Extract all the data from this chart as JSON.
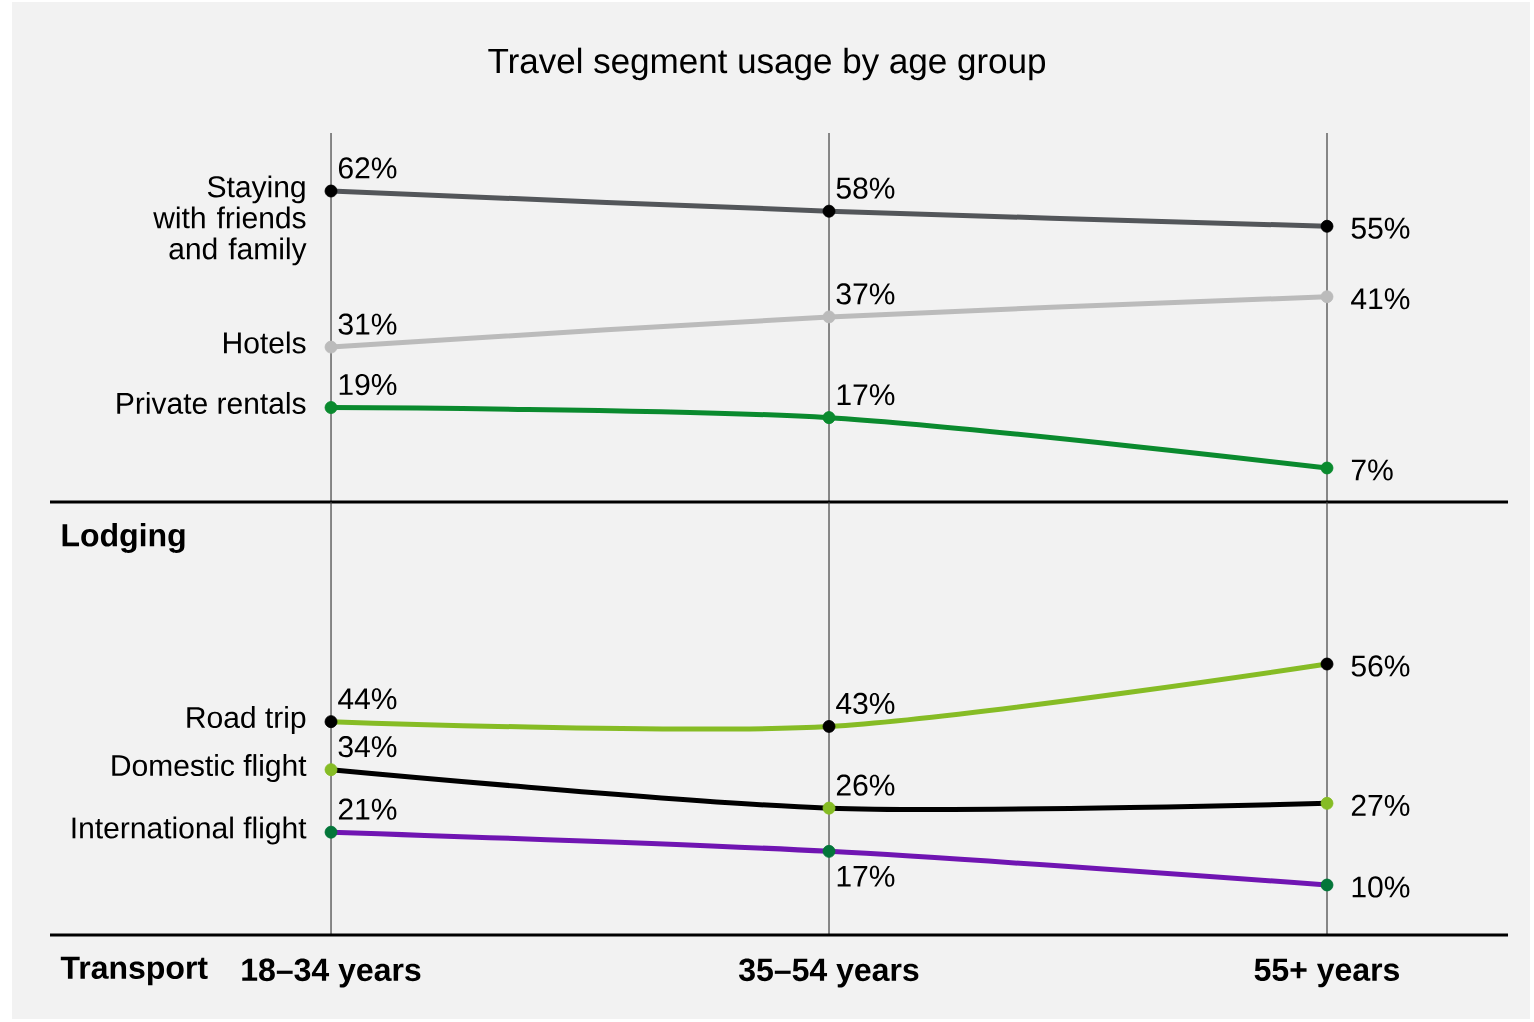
{
  "chart_data": [
    {
      "type": "line",
      "title": "Travel segment usage by age group",
      "xlabel": "Lodging",
      "categories": [
        null,
        null,
        null
      ],
      "series": [
        {
          "name": "Staying with friends and family",
          "color": "#53565a",
          "colors": [
            "#000000",
            "#000000",
            "#000000"
          ],
          "values": [
            62,
            58,
            55
          ],
          "value_labels": [
            "62%",
            "58%",
            "55%"
          ]
        },
        {
          "name": "Hotels",
          "color": "#bbbbbb",
          "colors": [
            "#bbbbbb",
            "#bbbbbb",
            "#bbbbbb"
          ],
          "values": [
            31,
            37,
            41
          ],
          "value_labels": [
            "31%",
            "37%",
            "41%"
          ]
        },
        {
          "name": "Private rentals",
          "color": "#0a8a2e",
          "colors": [
            "#0a8a2e",
            "#0a8a2e",
            "#0a8a2e"
          ],
          "values": [
            19,
            17,
            7
          ],
          "value_labels": [
            "19%",
            "17%",
            "7%"
          ]
        }
      ],
      "grid": "x",
      "marker": "circle",
      "tick_labels": false
    },
    {
      "type": "line",
      "xlabel": "Transport",
      "categories": [
        "18–34 years",
        "35–54 years",
        "55+ years"
      ],
      "series": [
        {
          "name": "Road trip",
          "color": "#86bc25",
          "colors": [
            "#000000",
            "#000000",
            "#000000"
          ],
          "values": [
            44,
            43,
            56
          ],
          "value_labels": [
            "44%",
            "43%",
            "56%"
          ]
        },
        {
          "name": "Domestic flight",
          "color": "#000000",
          "colors": [
            "#86bc25",
            "#86bc25",
            "#86bc25"
          ],
          "values": [
            34,
            26,
            27
          ],
          "value_labels": [
            "34%",
            "26%",
            "27%"
          ]
        },
        {
          "name": "International flight",
          "color": "#7015b2",
          "colors": [
            "#04763a",
            "#04763a",
            "#04763a"
          ],
          "values": [
            21,
            17,
            10
          ],
          "value_labels": [
            "21%",
            "17%",
            "10%"
          ]
        }
      ],
      "grid": "x",
      "marker": "circle",
      "tick_labels": "x"
    }
  ]
}
